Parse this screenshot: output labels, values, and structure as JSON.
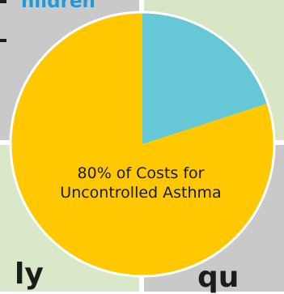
{
  "chart_data": {
    "type": "pie",
    "slices": [
      {
        "label": "80% of Costs for Uncontrolled Asthma",
        "value": 80,
        "color": "#ffc800"
      },
      {
        "label": "",
        "value": 20,
        "color": "#66c8d6"
      }
    ],
    "start_angle_deg": 0,
    "direction": "clockwise"
  },
  "fragments": {
    "top": "hildren",
    "bottom_left": "ly",
    "bottom_right": "qu"
  },
  "colors": {
    "border": "#ffffff",
    "gray_panel": "#c9c9c9",
    "green_panel": "#d7e6c4"
  }
}
